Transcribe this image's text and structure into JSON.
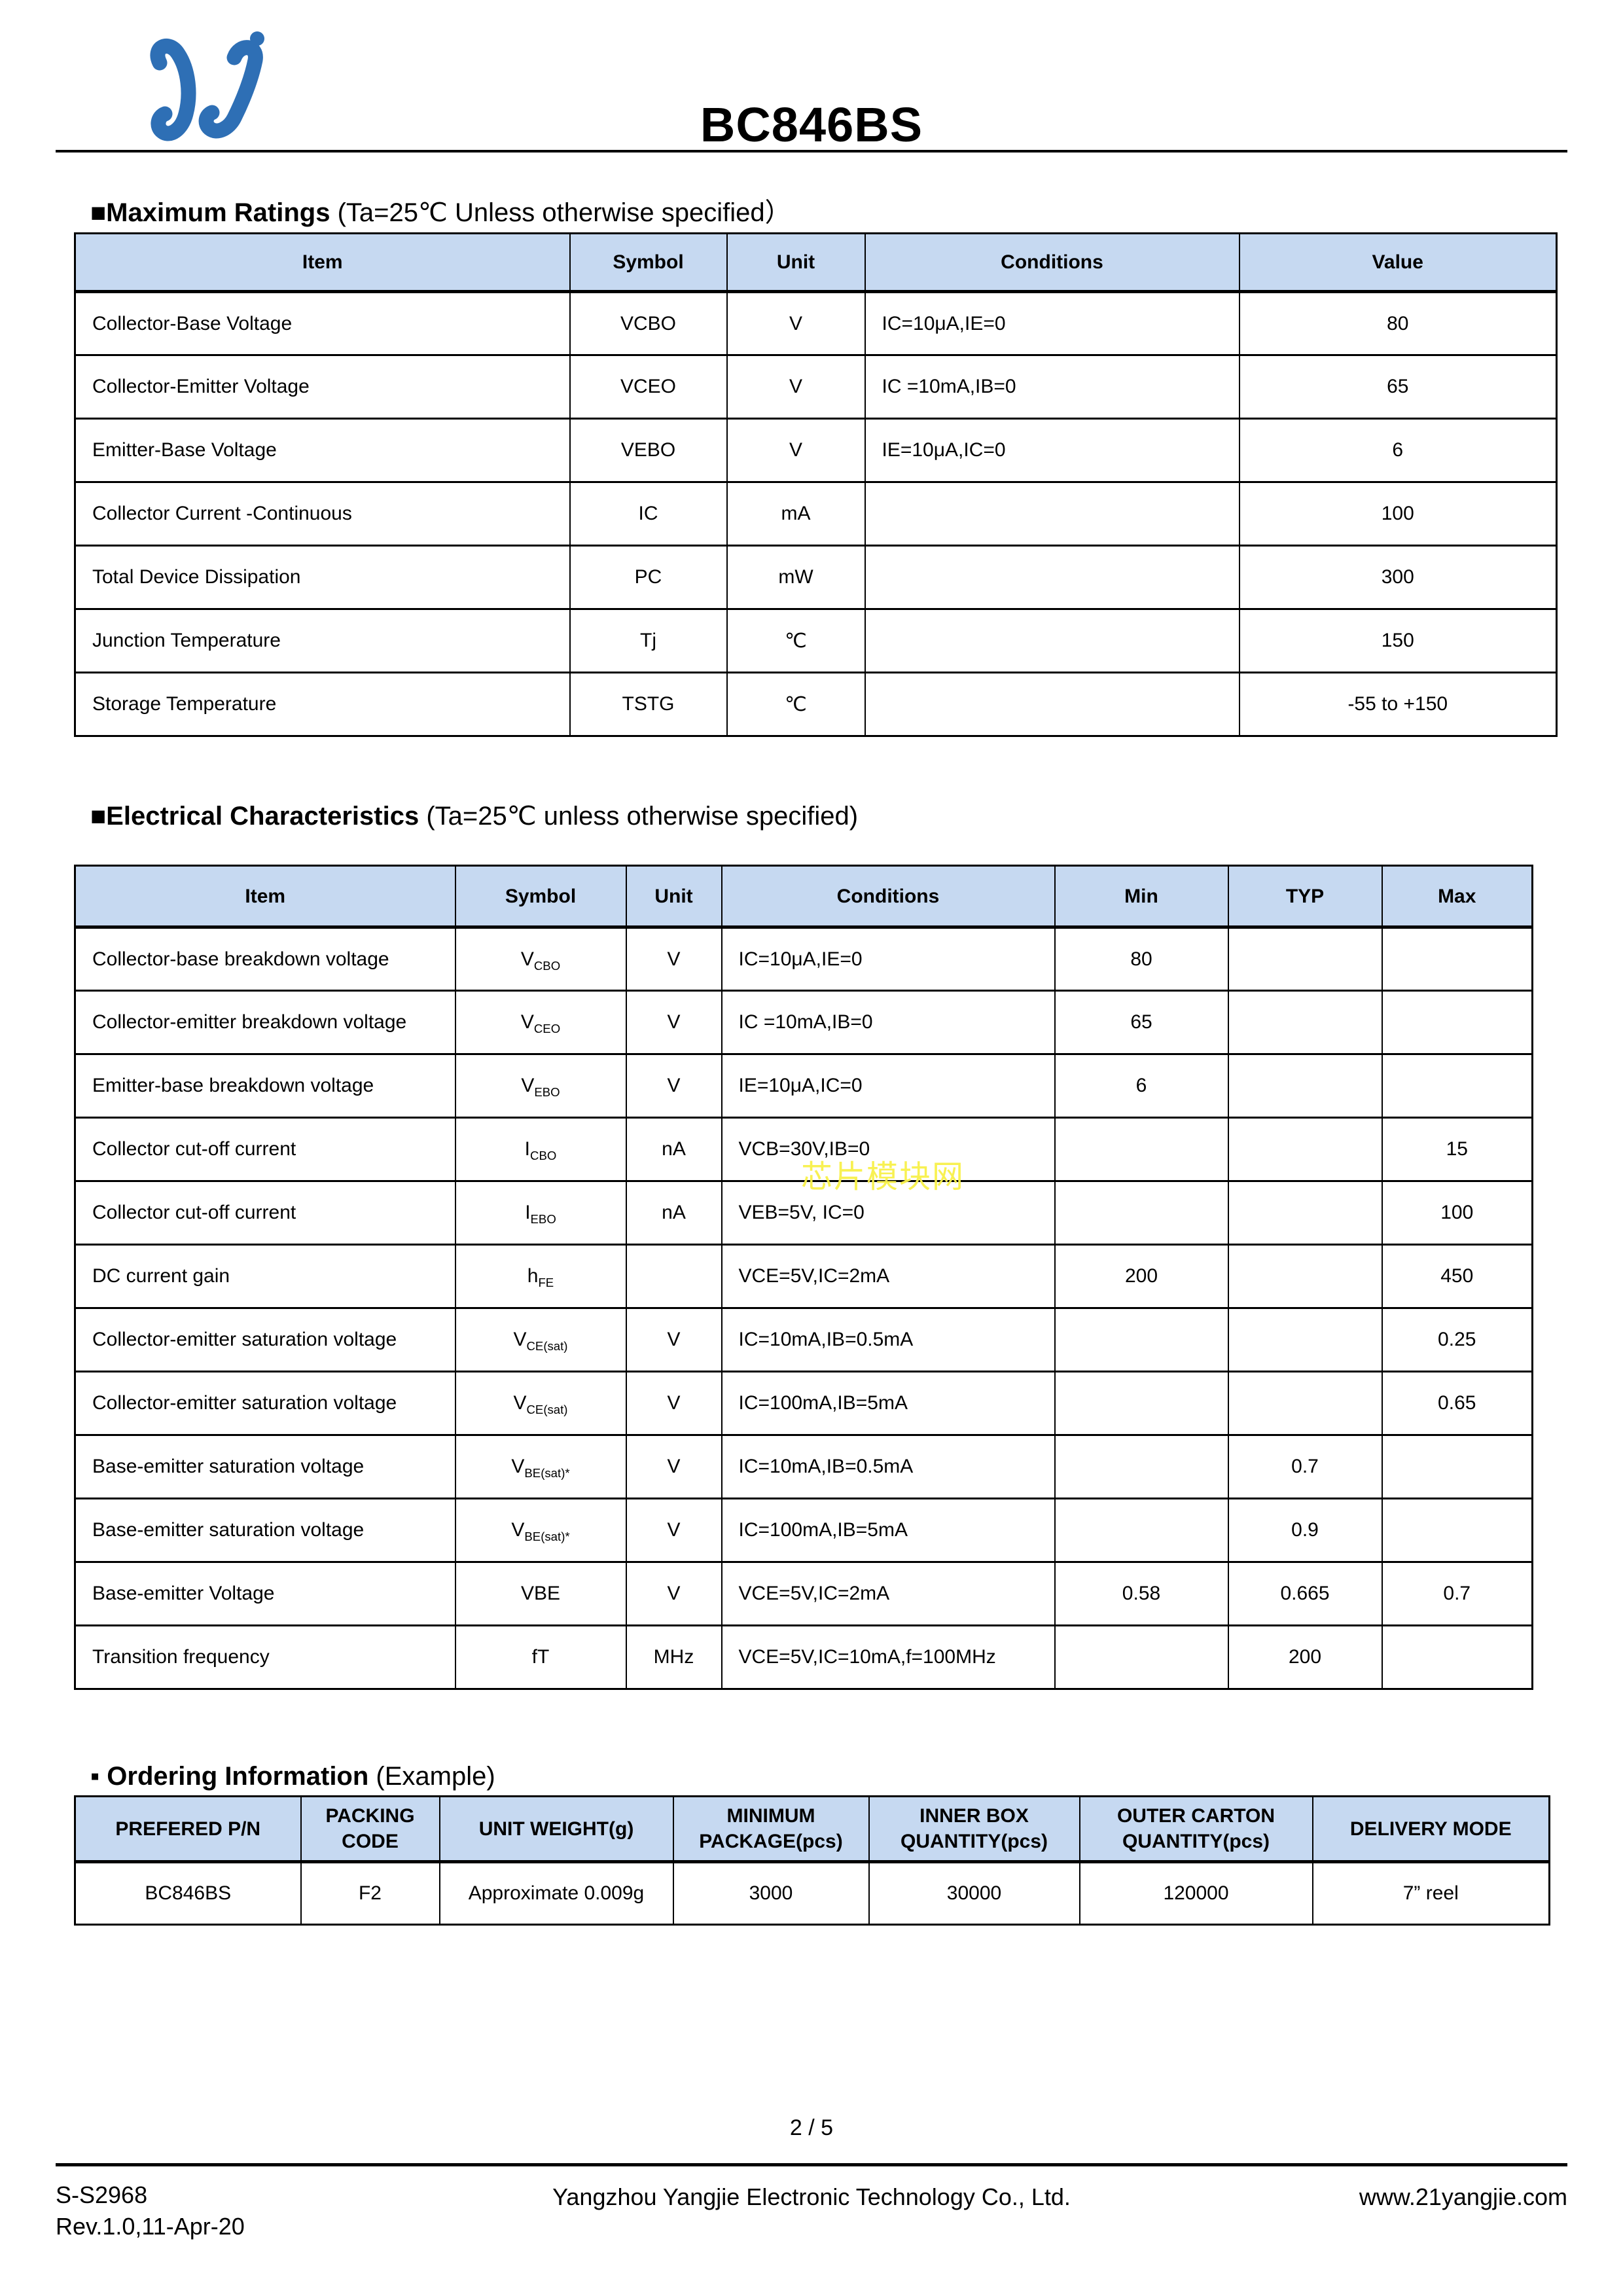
{
  "header": {
    "title": "BC846BS"
  },
  "max_ratings": {
    "heading_bold": "■Maximum Ratings",
    "heading_tail": " (Ta=25℃ Unless otherwise specified）",
    "columns": [
      "Item",
      "Symbol",
      "Unit",
      "Conditions",
      "Value"
    ],
    "rows": [
      [
        "Collector-Base Voltage",
        "VCBO",
        "V",
        "IC=10μA,IE=0",
        "80"
      ],
      [
        "Collector-Emitter Voltage",
        "VCEO",
        "V",
        "IC =10mA,IB=0",
        "65"
      ],
      [
        "Emitter-Base Voltage",
        "VEBO",
        "V",
        "IE=10μA,IC=0",
        "6"
      ],
      [
        "Collector Current -Continuous",
        "IC",
        "mA",
        "",
        "100"
      ],
      [
        "Total Device Dissipation",
        "PC",
        "mW",
        "",
        "300"
      ],
      [
        "Junction Temperature",
        "Tj",
        "℃",
        "",
        "150"
      ],
      [
        "Storage Temperature",
        "TSTG",
        "℃",
        "",
        "-55 to +150"
      ]
    ]
  },
  "electrical": {
    "heading_bold": "■Electrical Characteristics",
    "heading_tail": " (Ta=25℃ unless otherwise specified)",
    "watermark": "芯片模块网",
    "columns": [
      "Item",
      "Symbol",
      "Unit",
      "Conditions",
      "Min",
      "TYP",
      "Max"
    ],
    "rows": [
      {
        "item": "Collector-base breakdown voltage",
        "sym": "V",
        "sub": "CBO",
        "unit": "V",
        "cond": "IC=10μA,IE=0",
        "min": "80",
        "typ": "",
        "max": ""
      },
      {
        "item": "Collector-emitter breakdown voltage",
        "sym": "V",
        "sub": "CEO",
        "unit": "V",
        "cond": "IC =10mA,IB=0",
        "min": "65",
        "typ": "",
        "max": ""
      },
      {
        "item": "Emitter-base breakdown voltage",
        "sym": "V",
        "sub": "EBO",
        "unit": "V",
        "cond": "IE=10μA,IC=0",
        "min": "6",
        "typ": "",
        "max": ""
      },
      {
        "item": "Collector cut-off current",
        "sym": "I",
        "sub": "CBO",
        "unit": "nA",
        "cond": "VCB=30V,IB=0",
        "min": "",
        "typ": "",
        "max": "15"
      },
      {
        "item": "Collector cut-off current",
        "sym": "I",
        "sub": "EBO",
        "unit": "nA",
        "cond": "VEB=5V, IC=0",
        "min": "",
        "typ": "",
        "max": "100"
      },
      {
        "item": "DC current gain",
        "sym": "h",
        "sub": "FE",
        "unit": "",
        "cond": "VCE=5V,IC=2mA",
        "min": "200",
        "typ": "",
        "max": "450"
      },
      {
        "item": "Collector-emitter saturation voltage",
        "sym": "V",
        "sub": "CE(sat)",
        "unit": "V",
        "cond": "IC=10mA,IB=0.5mA",
        "min": "",
        "typ": "",
        "max": "0.25"
      },
      {
        "item": "Collector-emitter saturation voltage",
        "sym": "V",
        "sub": "CE(sat)",
        "unit": "V",
        "cond": "IC=100mA,IB=5mA",
        "min": "",
        "typ": "",
        "max": "0.65"
      },
      {
        "item": "Base-emitter saturation voltage",
        "sym": "V",
        "sub": "BE(sat)*",
        "unit": "V",
        "cond": "IC=10mA,IB=0.5mA",
        "min": "",
        "typ": "0.7",
        "max": ""
      },
      {
        "item": "Base-emitter saturation voltage",
        "sym": "V",
        "sub": "BE(sat)*",
        "unit": "V",
        "cond": "IC=100mA,IB=5mA",
        "min": "",
        "typ": "0.9",
        "max": ""
      },
      {
        "item": "Base-emitter Voltage",
        "sym": "VBE",
        "sub": "",
        "unit": "V",
        "cond": "VCE=5V,IC=2mA",
        "min": "0.58",
        "typ": "0.665",
        "max": "0.7"
      },
      {
        "item": "Transition frequency",
        "sym": "fT",
        "sub": "",
        "unit": "MHz",
        "cond": "VCE=5V,IC=10mA,f=100MHz",
        "min": "",
        "typ": "200",
        "max": ""
      }
    ]
  },
  "ordering": {
    "heading_bold": "▪ Ordering Information",
    "heading_tail": " (Example)",
    "columns": [
      "PREFERED P/N",
      "PACKING\nCODE",
      "UNIT WEIGHT(g)",
      "MINIMUM\nPACKAGE(pcs)",
      "INNER BOX\nQUANTITY(pcs)",
      "OUTER CARTON\nQUANTITY(pcs)",
      "DELIVERY MODE"
    ],
    "rows": [
      [
        "BC846BS",
        "F2",
        "Approximate 0.009g",
        "3000",
        "30000",
        "120000",
        "7” reel"
      ]
    ]
  },
  "footer": {
    "page_number": "2 / 5",
    "doc_number": "S-S2968",
    "revision": "Rev.1.0,11-Apr-20",
    "company": "Yangzhou Yangjie Electronic Technology Co., Ltd.",
    "website": "www.21yangjie.com"
  }
}
